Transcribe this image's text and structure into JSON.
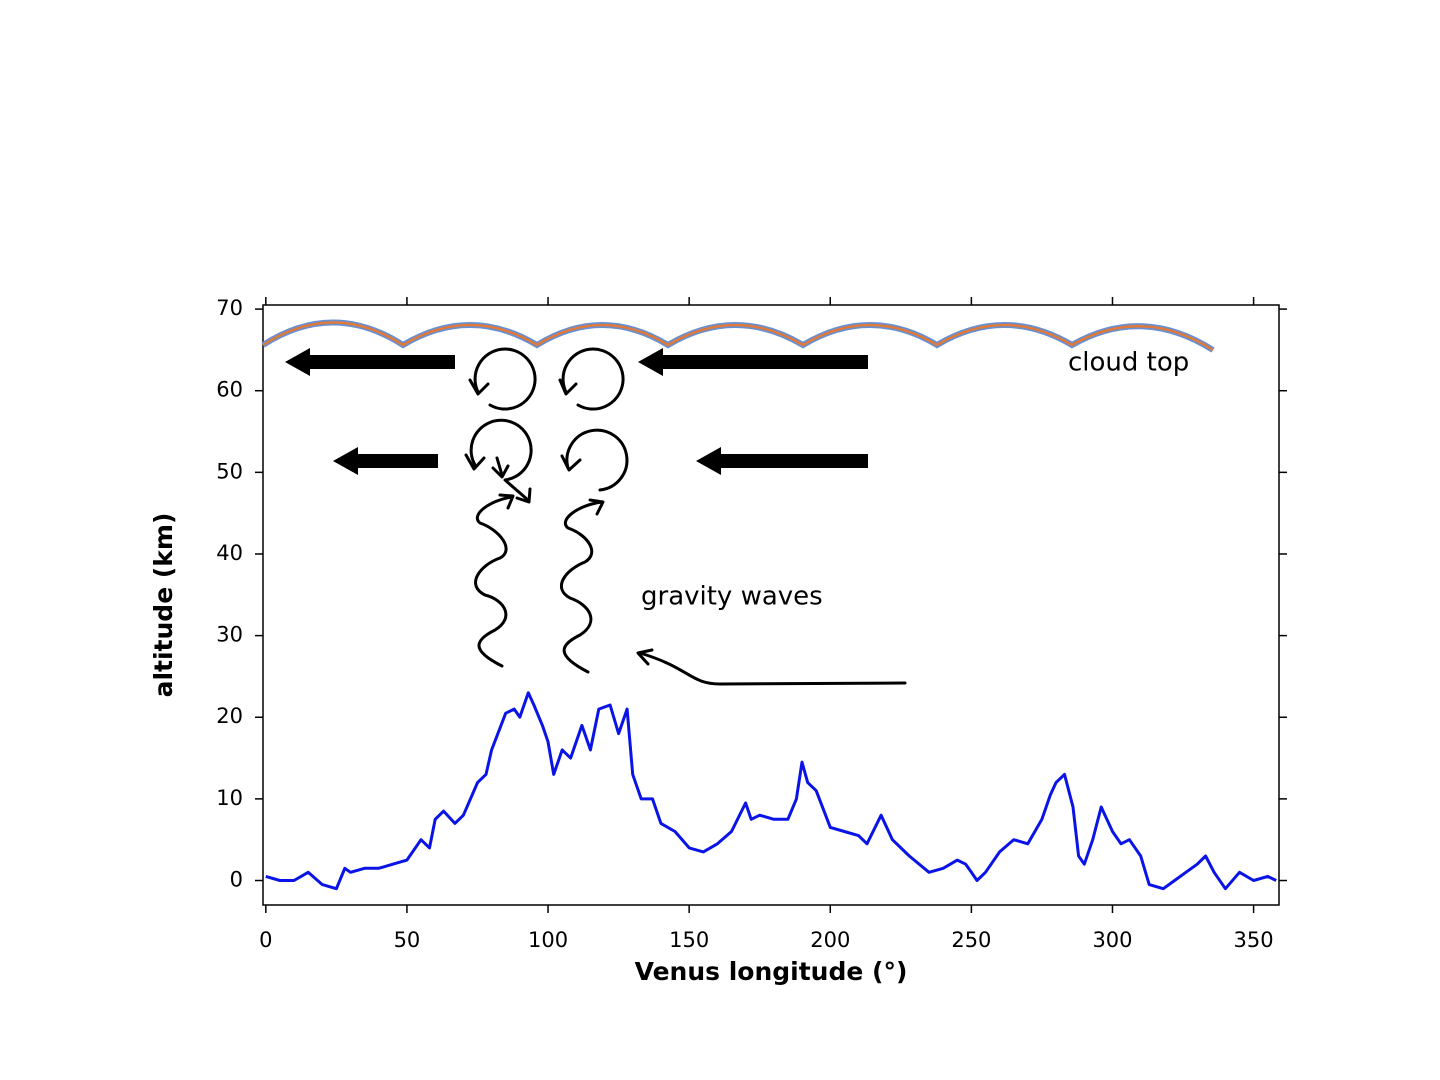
{
  "chart_data": {
    "type": "line",
    "xlabel": "Venus longitude (°)",
    "ylabel": "altitude (km)",
    "annotations": [
      "cloud top",
      "gravity waves"
    ],
    "color": "#0a14e6",
    "x": [
      0,
      5,
      10,
      15,
      20,
      25,
      28,
      30,
      35,
      40,
      45,
      50,
      55,
      58,
      60,
      63,
      67,
      70,
      75,
      78,
      80,
      85,
      88,
      90,
      93,
      95,
      98,
      100,
      102,
      105,
      108,
      112,
      115,
      118,
      122,
      125,
      128,
      130,
      133,
      137,
      140,
      145,
      150,
      155,
      160,
      165,
      170,
      172,
      175,
      180,
      185,
      188,
      190,
      192,
      195,
      200,
      205,
      210,
      213,
      218,
      222,
      228,
      235,
      240,
      245,
      248,
      250,
      252,
      255,
      260,
      265,
      270,
      275,
      278,
      280,
      283,
      286,
      288,
      290,
      293,
      296,
      300,
      303,
      306,
      310,
      313,
      318,
      322,
      326,
      330,
      333,
      336,
      340,
      345,
      350,
      355,
      358
    ],
    "values": [
      0.5,
      0,
      0,
      1,
      -0.5,
      -1,
      1.5,
      1,
      1.5,
      1.5,
      2,
      2.5,
      5,
      4,
      7.5,
      8.5,
      7,
      8,
      12,
      13,
      16,
      20.5,
      21,
      20,
      23,
      21.5,
      19,
      17,
      13,
      16,
      15,
      19,
      16,
      21,
      21.5,
      18,
      21,
      13,
      10,
      10,
      7,
      6,
      4,
      3.5,
      4.5,
      6,
      9.5,
      7.5,
      8,
      7.5,
      7.5,
      10,
      14.5,
      12,
      11,
      6.5,
      6,
      5.5,
      4.5,
      8,
      5,
      3,
      1,
      1.5,
      2.5,
      2,
      1,
      0,
      1,
      3.5,
      5,
      4.5,
      7.5,
      10.5,
      12,
      13,
      9,
      3,
      2,
      5,
      9,
      6,
      4.5,
      5,
      3,
      -0.5,
      -1,
      0,
      1,
      2,
      3,
      1,
      -1,
      1,
      0,
      0.5,
      0
    ],
    "xlim": [
      -1,
      359
    ],
    "xticks": [
      0,
      50,
      100,
      150,
      200,
      250,
      300,
      350
    ],
    "ylim": [
      -3,
      70.5
    ],
    "yticks": [
      0,
      10,
      20,
      30,
      40,
      50,
      60,
      70
    ]
  }
}
